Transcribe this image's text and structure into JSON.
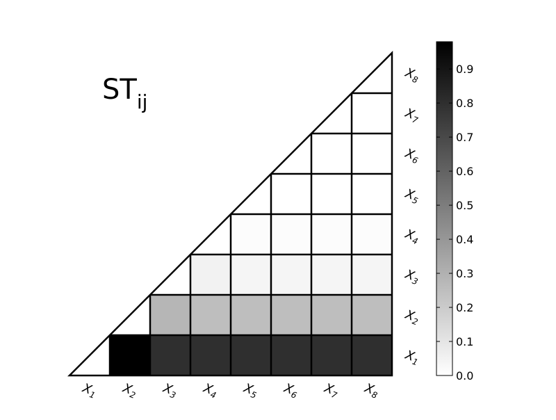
{
  "chart_data": {
    "type": "heatmap",
    "title": "ST",
    "title_subscript": "ij",
    "shape": "lower-triangular matrix (strictly below diagonal shaded)",
    "x_tick_labels": [
      "X1",
      "X2",
      "X3",
      "X4",
      "X5",
      "X6",
      "X7",
      "X8"
    ],
    "y_tick_labels": [
      "X1",
      "X2",
      "X3",
      "X4",
      "X5",
      "X6",
      "X7",
      "X8"
    ],
    "x_tick_display": [
      {
        "main": "X",
        "sub": "1"
      },
      {
        "main": "X",
        "sub": "2"
      },
      {
        "main": "X",
        "sub": "3"
      },
      {
        "main": "X",
        "sub": "4"
      },
      {
        "main": "X",
        "sub": "5"
      },
      {
        "main": "X",
        "sub": "6"
      },
      {
        "main": "X",
        "sub": "7"
      },
      {
        "main": "X",
        "sub": "8"
      }
    ],
    "y_tick_display": [
      {
        "main": "X",
        "sub": "1"
      },
      {
        "main": "X",
        "sub": "2"
      },
      {
        "main": "X",
        "sub": "3"
      },
      {
        "main": "X",
        "sub": "4"
      },
      {
        "main": "X",
        "sub": "5"
      },
      {
        "main": "X",
        "sub": "6"
      },
      {
        "main": "X",
        "sub": "7"
      },
      {
        "main": "X",
        "sub": "8"
      }
    ],
    "cells": [
      {
        "x": "X2",
        "y": "X1",
        "value": 0.98
      },
      {
        "x": "X3",
        "y": "X1",
        "value": 0.8
      },
      {
        "x": "X4",
        "y": "X1",
        "value": 0.8
      },
      {
        "x": "X5",
        "y": "X1",
        "value": 0.8
      },
      {
        "x": "X6",
        "y": "X1",
        "value": 0.8
      },
      {
        "x": "X7",
        "y": "X1",
        "value": 0.8
      },
      {
        "x": "X8",
        "y": "X1",
        "value": 0.8
      },
      {
        "x": "X3",
        "y": "X2",
        "value": 0.28
      },
      {
        "x": "X4",
        "y": "X2",
        "value": 0.25
      },
      {
        "x": "X5",
        "y": "X2",
        "value": 0.25
      },
      {
        "x": "X6",
        "y": "X2",
        "value": 0.25
      },
      {
        "x": "X7",
        "y": "X2",
        "value": 0.25
      },
      {
        "x": "X8",
        "y": "X2",
        "value": 0.25
      },
      {
        "x": "X4",
        "y": "X3",
        "value": 0.05
      },
      {
        "x": "X5",
        "y": "X3",
        "value": 0.04
      },
      {
        "x": "X6",
        "y": "X3",
        "value": 0.04
      },
      {
        "x": "X7",
        "y": "X3",
        "value": 0.04
      },
      {
        "x": "X8",
        "y": "X3",
        "value": 0.04
      },
      {
        "x": "X5",
        "y": "X4",
        "value": 0.01
      },
      {
        "x": "X6",
        "y": "X4",
        "value": 0.01
      },
      {
        "x": "X7",
        "y": "X4",
        "value": 0.01
      },
      {
        "x": "X8",
        "y": "X4",
        "value": 0.01
      },
      {
        "x": "X6",
        "y": "X5",
        "value": 0.0
      },
      {
        "x": "X7",
        "y": "X5",
        "value": 0.0
      },
      {
        "x": "X8",
        "y": "X5",
        "value": 0.0
      },
      {
        "x": "X7",
        "y": "X6",
        "value": 0.0
      },
      {
        "x": "X8",
        "y": "X6",
        "value": 0.0
      },
      {
        "x": "X8",
        "y": "X7",
        "value": 0.0
      }
    ],
    "colorbar": {
      "min": 0.0,
      "max": 0.98,
      "ticks": [
        0.0,
        0.1,
        0.2,
        0.3,
        0.4,
        0.5,
        0.6,
        0.7,
        0.8,
        0.9
      ],
      "tick_labels": [
        "0.0",
        "0.1",
        "0.2",
        "0.3",
        "0.4",
        "0.5",
        "0.6",
        "0.7",
        "0.8",
        "0.9"
      ],
      "colormap": "white-to-black",
      "low_color": "#ffffff",
      "high_color": "#000000"
    },
    "grid": true,
    "legend": "colorbar right"
  }
}
